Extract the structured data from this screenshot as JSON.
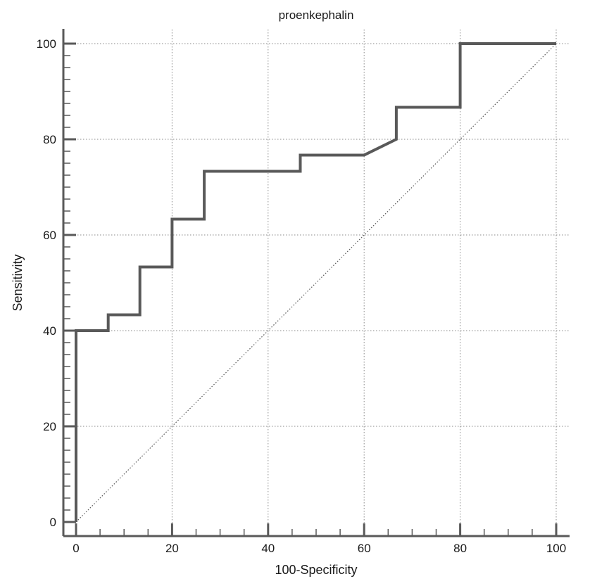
{
  "chart_data": {
    "type": "line",
    "title": "proenkephalin",
    "xlabel": "100-Specificity",
    "ylabel": "Sensitivity",
    "xlim": [
      0,
      100
    ],
    "ylim": [
      0,
      100
    ],
    "xticks": [
      0,
      20,
      40,
      60,
      80,
      100
    ],
    "yticks": [
      0,
      20,
      40,
      60,
      80,
      100
    ],
    "grid": true,
    "series": [
      {
        "x": [
          0,
          0,
          6.7,
          6.7,
          13.3,
          13.3,
          20,
          20,
          26.7,
          26.7,
          46.7,
          46.7,
          60,
          66.7,
          66.7,
          80,
          80,
          100
        ],
        "y": [
          0,
          40,
          40,
          43.3,
          43.3,
          53.3,
          53.3,
          63.3,
          63.3,
          73.3,
          73.3,
          76.7,
          76.7,
          80,
          86.7,
          86.7,
          100,
          100
        ],
        "color": "#595959"
      },
      {
        "x": [
          0,
          100
        ],
        "y": [
          0,
          100
        ],
        "color": "#595959",
        "style": "dotted"
      }
    ]
  }
}
